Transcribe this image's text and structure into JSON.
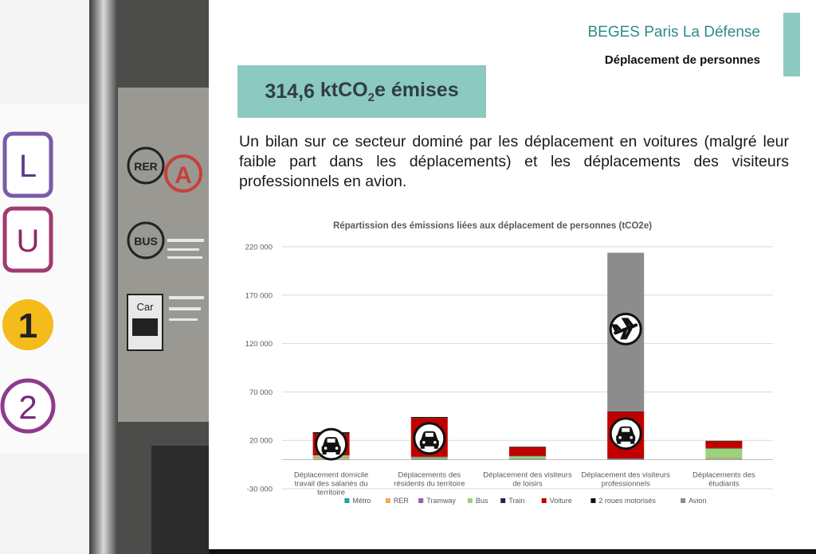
{
  "header": {
    "title": "BEGES Paris La Défense",
    "subtitle": "Déplacement de personnes"
  },
  "emissions_box": {
    "value": "314,6",
    "unit_main": "ktCO",
    "unit_sub": "2",
    "unit_tail": "e émises"
  },
  "intro_text": "Un bilan sur ce secteur dominé par les déplacement en voitures (malgré leur faible part dans les déplacements) et les déplacements des visiteurs professionnels en avion.",
  "photo": {
    "signs": [
      "L",
      "U",
      "1",
      "2"
    ],
    "station_labels": [
      "RER",
      "A",
      "BUS",
      "Car"
    ]
  },
  "colors": {
    "accent": "#8cc9c0",
    "header_title": "#2e8b8b"
  },
  "chart_data": {
    "type": "bar",
    "stacked": true,
    "title": "Répartission des émissions liées aux déplacement de personnes (tCO2e)",
    "categories": [
      [
        "Déplacement domicile",
        "travail des salariés du",
        "territoire"
      ],
      [
        "Déplacements des",
        "résidents du territoire"
      ],
      [
        "Déplacement des visiteurs",
        "de loisirs"
      ],
      [
        "Déplacement des visiteurs",
        "professionnels"
      ],
      [
        "Déplacements des",
        "étudiants"
      ]
    ],
    "y_ticks": [
      "220 000",
      "170 000",
      "120 000",
      "70 000",
      "20 000",
      "-30 000"
    ],
    "y_tick_values": [
      220000,
      170000,
      120000,
      70000,
      20000,
      -30000
    ],
    "ylim": [
      -30000,
      220000
    ],
    "legend_position": "bottom",
    "series": [
      {
        "name": "Métro",
        "color": "#1aa3a3",
        "values": [
          500,
          800,
          300,
          200,
          600
        ]
      },
      {
        "name": "RER",
        "color": "#f5a857",
        "values": [
          2000,
          1000,
          500,
          500,
          1000
        ]
      },
      {
        "name": "Tramway",
        "color": "#9b59b6",
        "values": [
          100,
          100,
          50,
          50,
          100
        ]
      },
      {
        "name": "Bus",
        "color": "#9bd27a",
        "values": [
          2000,
          1000,
          3000,
          500,
          10000
        ]
      },
      {
        "name": "Train",
        "color": "#2d1b4e",
        "values": [
          300,
          200,
          100,
          100,
          300
        ]
      },
      {
        "name": "Voiture",
        "color": "#c00000",
        "values": [
          22000,
          40000,
          9000,
          48000,
          7000
        ]
      },
      {
        "name": "2 roues motorisés",
        "color": "#111111",
        "values": [
          1500,
          1000,
          500,
          500,
          500
        ]
      },
      {
        "name": "Avion",
        "color": "#8c8c8c",
        "values": [
          0,
          0,
          0,
          164000,
          0
        ]
      }
    ],
    "icons": [
      {
        "category": 0,
        "name": "car-icon",
        "at": 16000
      },
      {
        "category": 1,
        "name": "car-icon",
        "at": 22000
      },
      {
        "category": 3,
        "name": "plane-icon",
        "at": 135000
      },
      {
        "category": 3,
        "name": "car-icon",
        "at": 27000
      }
    ]
  }
}
